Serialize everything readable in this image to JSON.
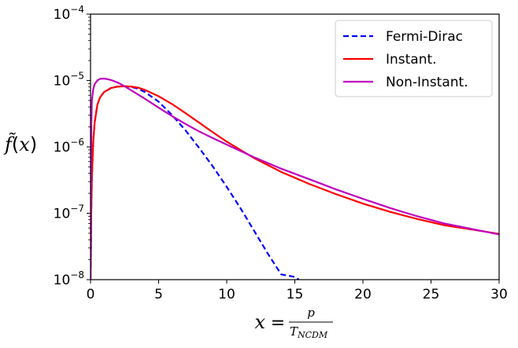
{
  "chart_data": {
    "type": "line",
    "xlabel": "x = p / T_NCDM",
    "xlabel_parts": {
      "lhs": "x",
      "eq": "=",
      "num": "p",
      "den_base": "T",
      "den_sub": "NCDM"
    },
    "ylabel": "f̃(x)",
    "ylabel_parts": {
      "f": "f̃",
      "open": "(",
      "x": "x",
      "close": ")"
    },
    "xlim": [
      0,
      30
    ],
    "ylim": [
      1e-08,
      0.0001
    ],
    "yscale": "log",
    "grid": false,
    "legend_position": "upper-right",
    "x_ticks": [
      0,
      5,
      10,
      15,
      20,
      25,
      30
    ],
    "x_tick_labels": [
      "0",
      "5",
      "10",
      "15",
      "20",
      "25",
      "30"
    ],
    "y_ticks": [
      1e-08,
      1e-07,
      1e-06,
      1e-05,
      0.0001
    ],
    "y_tick_labels": [
      {
        "base": "10",
        "exp": "−8"
      },
      {
        "base": "10",
        "exp": "−7"
      },
      {
        "base": "10",
        "exp": "−6"
      },
      {
        "base": "10",
        "exp": "−5"
      },
      {
        "base": "10",
        "exp": "−4"
      }
    ],
    "series": [
      {
        "name": "Fermi-Dirac",
        "color": "#0000ff",
        "dash": "dashed",
        "x": [
          0.02,
          0.05,
          0.1,
          0.2,
          0.3,
          0.5,
          0.7,
          1.0,
          1.5,
          2.0,
          2.5,
          3.0,
          3.5,
          4.0,
          5.0,
          6.0,
          7.0,
          8.0,
          9.0,
          10.0,
          11.0,
          12.0,
          13.0,
          14.0,
          15.0,
          15.3
        ],
        "y": [
          1.5e-08,
          9e-08,
          3.5e-07,
          1.2e-06,
          2.3e-06,
          4.3e-06,
          5.6e-06,
          6.7e-06,
          7.7e-06,
          8.1e-06,
          8.2e-06,
          8e-06,
          7.5e-06,
          6.7e-06,
          4.8e-06,
          3e-06,
          1.75e-06,
          9.5e-07,
          5e-07,
          2.5e-07,
          1.2e-07,
          5.5e-08,
          2.5e-08,
          1.2e-08,
          1.1e-08,
          1e-08
        ]
      },
      {
        "name": "Instant.",
        "color": "#ff0000",
        "dash": "solid",
        "x": [
          0.02,
          0.05,
          0.1,
          0.2,
          0.3,
          0.5,
          0.7,
          1.0,
          1.5,
          2.0,
          2.5,
          3.0,
          3.5,
          4.0,
          5.0,
          6.0,
          7.0,
          8.0,
          9.0,
          10.0,
          12.0,
          14.0,
          16.0,
          18.0,
          20.0,
          22.0,
          24.0,
          26.0,
          28.0,
          30.0
        ],
        "y": [
          1.5e-08,
          9e-08,
          3.5e-07,
          1.2e-06,
          2.3e-06,
          4.3e-06,
          5.6e-06,
          6.7e-06,
          7.7e-06,
          8.1e-06,
          8.2e-06,
          8.1e-06,
          7.8e-06,
          7.2e-06,
          5.8e-06,
          4.4e-06,
          3.2e-06,
          2.3e-06,
          1.65e-06,
          1.2e-06,
          6.8e-07,
          4.2e-07,
          2.8e-07,
          1.95e-07,
          1.4e-07,
          1.05e-07,
          8.2e-08,
          6.6e-08,
          5.7e-08,
          4.9e-08
        ]
      },
      {
        "name": "Non-Instant.",
        "color": "#bf00bf",
        "dash": "solid",
        "x": [
          0.01,
          0.03,
          0.06,
          0.1,
          0.2,
          0.3,
          0.5,
          0.7,
          1.0,
          1.5,
          2.0,
          2.5,
          3.0,
          4.0,
          5.0,
          6.0,
          7.0,
          8.0,
          9.0,
          10.0,
          12.0,
          14.0,
          16.0,
          18.0,
          20.0,
          22.0,
          24.0,
          26.0,
          28.0,
          30.0
        ],
        "y": [
          1e-08,
          1.5e-07,
          2.2e-06,
          5e-06,
          7.5e-06,
          8.8e-06,
          1e-05,
          1.06e-05,
          1.07e-05,
          1.02e-05,
          9.3e-06,
          8.2e-06,
          7.1e-06,
          5.3e-06,
          3.9e-06,
          2.9e-06,
          2.2e-06,
          1.7e-06,
          1.35e-06,
          1.08e-06,
          7e-07,
          4.7e-07,
          3.3e-07,
          2.3e-07,
          1.65e-07,
          1.2e-07,
          9e-08,
          7e-08,
          5.8e-08,
          4.8e-08
        ]
      }
    ]
  }
}
